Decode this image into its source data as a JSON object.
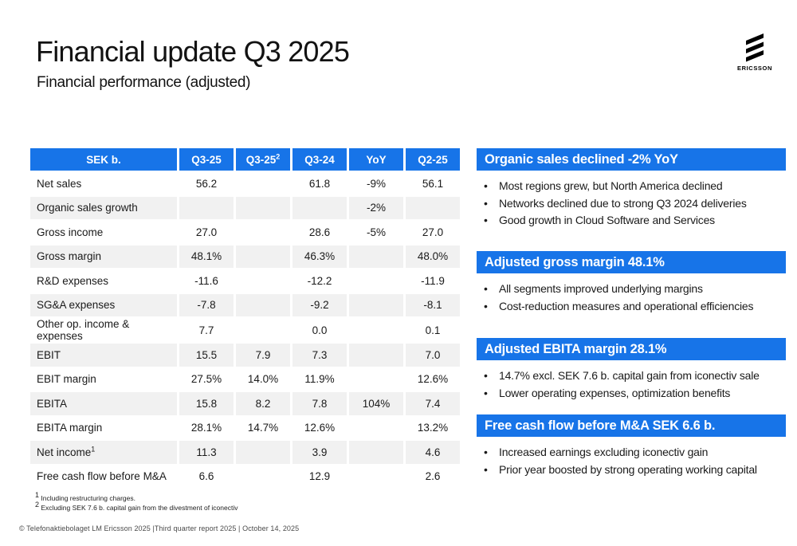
{
  "colors": {
    "accent": "#1774E8",
    "row_alt": "#F1F1F1"
  },
  "header": {
    "title": "Financial update Q3 2025",
    "subtitle": "Financial performance (adjusted)",
    "logo_text": "ERICSSON"
  },
  "table": {
    "headers": [
      {
        "label": "SEK b.",
        "sup": ""
      },
      {
        "label": "Q3-25",
        "sup": ""
      },
      {
        "label": "Q3-25",
        "sup": "2"
      },
      {
        "label": "Q3-24",
        "sup": ""
      },
      {
        "label": "YoY",
        "sup": ""
      },
      {
        "label": "Q2-25",
        "sup": ""
      }
    ],
    "rows": [
      {
        "label": "Net sales",
        "sup": "",
        "values": [
          "56.2",
          "",
          "61.8",
          "-9%",
          "56.1"
        ]
      },
      {
        "label": "Organic sales growth",
        "sup": "",
        "values": [
          "",
          "",
          "",
          "-2%",
          ""
        ]
      },
      {
        "label": "Gross income",
        "sup": "",
        "values": [
          "27.0",
          "",
          "28.6",
          "-5%",
          "27.0"
        ]
      },
      {
        "label": "Gross margin",
        "sup": "",
        "values": [
          "48.1%",
          "",
          "46.3%",
          "",
          "48.0%"
        ]
      },
      {
        "label": "R&D expenses",
        "sup": "",
        "values": [
          "-11.6",
          "",
          "-12.2",
          "",
          "-11.9"
        ]
      },
      {
        "label": "SG&A expenses",
        "sup": "",
        "values": [
          "-7.8",
          "",
          "-9.2",
          "",
          "-8.1"
        ]
      },
      {
        "label": "Other op. income & expenses",
        "sup": "",
        "values": [
          "7.7",
          "",
          "0.0",
          "",
          "0.1"
        ]
      },
      {
        "label": "EBIT",
        "sup": "",
        "values": [
          "15.5",
          "7.9",
          "7.3",
          "",
          "7.0"
        ]
      },
      {
        "label": "EBIT margin",
        "sup": "",
        "values": [
          "27.5%",
          "14.0%",
          "11.9%",
          "",
          "12.6%"
        ]
      },
      {
        "label": "EBITA",
        "sup": "",
        "values": [
          "15.8",
          "8.2",
          "7.8",
          "104%",
          "7.4"
        ]
      },
      {
        "label": "EBITA margin",
        "sup": "",
        "values": [
          "28.1%",
          "14.7%",
          "12.6%",
          "",
          "13.2%"
        ]
      },
      {
        "label": "Net income",
        "sup": "1",
        "values": [
          "11.3",
          "",
          "3.9",
          "",
          "4.6"
        ]
      },
      {
        "label": "Free cash flow before M&A",
        "sup": "",
        "values": [
          "6.6",
          "",
          "12.9",
          "",
          "2.6"
        ]
      }
    ]
  },
  "callouts": [
    {
      "title": "Organic sales declined -2% YoY",
      "bullets": [
        "Most regions grew, but North America declined",
        "Networks declined due to strong Q3 2024 deliveries",
        "Good growth in Cloud Software and Services"
      ]
    },
    {
      "title": "Adjusted gross margin 48.1%",
      "bullets": [
        "All segments improved underlying margins",
        "Cost-reduction measures and operational efficiencies"
      ]
    },
    {
      "title": "Adjusted EBITA margin 28.1%",
      "bullets": [
        "14.7% excl. SEK 7.6 b. capital gain from iconectiv sale",
        "Lower operating expenses, optimization benefits"
      ]
    },
    {
      "title": "Free cash flow before M&A SEK 6.6 b.",
      "bullets": [
        "Increased earnings excluding iconectiv gain",
        "Prior year boosted by strong operating working capital"
      ]
    }
  ],
  "footnotes": [
    {
      "sup": "1",
      "text": "Including restructuring charges."
    },
    {
      "sup": "2",
      "text": "Excluding SEK 7.6 b. capital gain from the divestment of iconectiv"
    }
  ],
  "footer": {
    "text": "© Telefonaktiebolaget LM Ericsson 2025  |Third quarter report 2025 | October 14, 2025"
  }
}
